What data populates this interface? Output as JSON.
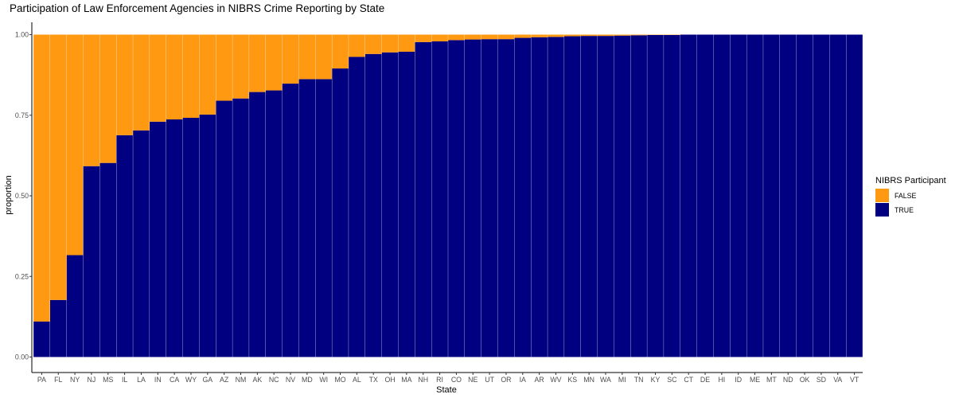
{
  "chart_data": {
    "type": "bar",
    "stacked": true,
    "title": "Participation of Law Enforcement Agencies in NIBRS Crime Reporting by State",
    "xlabel": "State",
    "ylabel": "proportion",
    "ylim": [
      0,
      1
    ],
    "yticks": [
      0,
      0.25,
      0.5,
      0.75,
      1
    ],
    "ytick_labels": [
      "0.00",
      "0.25",
      "0.50",
      "0.75",
      "1.00"
    ],
    "categories": [
      "PA",
      "FL",
      "NY",
      "NJ",
      "MS",
      "IL",
      "LA",
      "IN",
      "CA",
      "WY",
      "GA",
      "AZ",
      "NM",
      "AK",
      "NC",
      "NV",
      "MD",
      "WI",
      "MO",
      "AL",
      "TX",
      "OH",
      "MA",
      "NH",
      "RI",
      "CO",
      "NE",
      "UT",
      "OR",
      "IA",
      "AR",
      "WV",
      "KS",
      "MN",
      "WA",
      "MI",
      "TN",
      "KY",
      "SC",
      "CT",
      "DE",
      "HI",
      "ID",
      "ME",
      "MT",
      "ND",
      "OK",
      "SD",
      "VA",
      "VT"
    ],
    "series": [
      {
        "name": "TRUE",
        "color": "#000080",
        "values": [
          0.11,
          0.177,
          0.316,
          0.592,
          0.602,
          0.688,
          0.703,
          0.73,
          0.737,
          0.742,
          0.752,
          0.795,
          0.802,
          0.822,
          0.827,
          0.848,
          0.862,
          0.862,
          0.895,
          0.931,
          0.94,
          0.945,
          0.947,
          0.977,
          0.979,
          0.983,
          0.985,
          0.986,
          0.986,
          0.99,
          0.992,
          0.993,
          0.995,
          0.996,
          0.996,
          0.997,
          0.998,
          0.999,
          0.999,
          1,
          1,
          1,
          1,
          1,
          1,
          1,
          1,
          1,
          1,
          1
        ]
      },
      {
        "name": "FALSE",
        "color": "#FF9912",
        "values": [
          0.89,
          0.823,
          0.684,
          0.408,
          0.398,
          0.312,
          0.297,
          0.27,
          0.263,
          0.258,
          0.248,
          0.205,
          0.198,
          0.178,
          0.173,
          0.152,
          0.138,
          0.138,
          0.105,
          0.069,
          0.06,
          0.055,
          0.053,
          0.023,
          0.021,
          0.017,
          0.015,
          0.014,
          0.014,
          0.01,
          0.008,
          0.007,
          0.005,
          0.004,
          0.004,
          0.003,
          0.002,
          0.001,
          0.001,
          0,
          0,
          0,
          0,
          0,
          0,
          0,
          0,
          0,
          0,
          0
        ]
      }
    ],
    "legend": {
      "title": "NIBRS Participant",
      "position": "right",
      "entries": [
        {
          "label": "FALSE",
          "color": "#FF9912"
        },
        {
          "label": "TRUE",
          "color": "#000080"
        }
      ]
    }
  }
}
